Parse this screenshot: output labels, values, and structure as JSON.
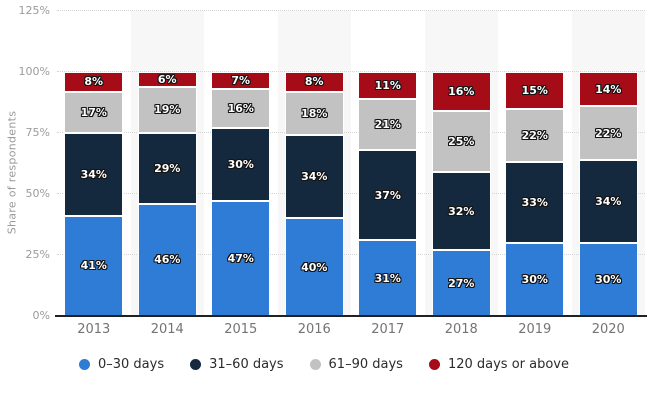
{
  "chart_data": {
    "type": "bar",
    "stacked": true,
    "orientation": "vertical",
    "title": "",
    "xlabel": "",
    "ylabel": "Share of respondents",
    "ylim": [
      0,
      125
    ],
    "yticks": [
      0,
      25,
      50,
      75,
      100,
      125
    ],
    "y_tick_suffix": "%",
    "grid": "dotted horizontal gridlines, alternating light column bands",
    "legend_position": "bottom",
    "categories": [
      "2013",
      "2014",
      "2015",
      "2016",
      "2017",
      "2018",
      "2019",
      "2020"
    ],
    "series": [
      {
        "name": "0–30 days",
        "color": "#2e7cd6",
        "values": [
          41,
          46,
          47,
          40,
          31,
          27,
          30,
          30
        ]
      },
      {
        "name": "31–60 days",
        "color": "#14283e",
        "values": [
          34,
          29,
          30,
          34,
          37,
          32,
          33,
          34
        ]
      },
      {
        "name": "61–90 days",
        "color": "#c2c2c2",
        "values": [
          17,
          19,
          16,
          18,
          21,
          25,
          22,
          22
        ]
      },
      {
        "name": "120 days or above",
        "color": "#a60c18",
        "values": [
          8,
          6,
          7,
          8,
          11,
          16,
          15,
          14
        ]
      }
    ],
    "data_label_suffix": "%",
    "colors": {
      "background": "#ffffff",
      "column_band": "#f7f7f7",
      "gridline": "#d4d4d4",
      "axis_line": "#212121",
      "tick_text": "#9b9b9b",
      "category_text": "#747474",
      "legend_text": "#2b2b2b",
      "data_label_text": "#ffffff"
    }
  }
}
